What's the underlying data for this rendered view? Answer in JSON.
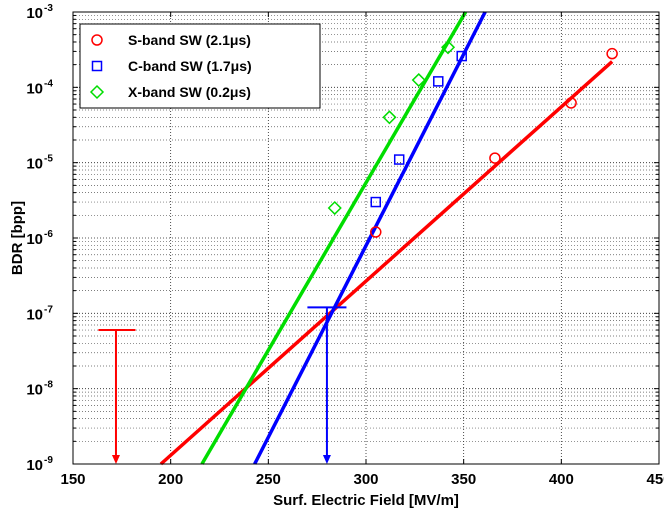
{
  "chart_data": {
    "type": "scatter",
    "xlabel": "Surf. Electric Field [MV/m]",
    "ylabel": "BDR [bpp]",
    "xlim": [
      150,
      450
    ],
    "ylim": [
      1e-09,
      0.001
    ],
    "yscale": "log",
    "grid": true,
    "legend_position": "top-left",
    "x_ticks": [
      "150",
      "200",
      "250",
      "300",
      "350",
      "400",
      "450"
    ],
    "y_tick_exponents": [
      "-9",
      "-8",
      "-7",
      "-6",
      "-5",
      "-4",
      "-3"
    ],
    "series": [
      {
        "name": "S-band SW (2.1μs)",
        "color": "#ff0000",
        "marker": "circle",
        "points": [
          [
            305,
            1.2e-06
          ],
          [
            366,
            1.15e-05
          ],
          [
            405,
            6.2e-05
          ],
          [
            426,
            0.00028
          ]
        ],
        "fit_line": [
          [
            195,
            1e-09
          ],
          [
            426,
            0.00022
          ]
        ]
      },
      {
        "name": "C-band SW (1.7μs)",
        "color": "#0000ff",
        "marker": "square",
        "points": [
          [
            305,
            3e-06
          ],
          [
            317,
            1.1e-05
          ],
          [
            337,
            0.00012
          ],
          [
            349,
            0.00026
          ]
        ],
        "fit_line": [
          [
            243,
            1e-09
          ],
          [
            361,
            0.001
          ]
        ]
      },
      {
        "name": "X-band SW (0.2μs)",
        "color": "#00dd00",
        "marker": "diamond",
        "points": [
          [
            284,
            2.5e-06
          ],
          [
            312,
            4e-05
          ],
          [
            327,
            0.000125
          ],
          [
            342,
            0.00034
          ]
        ],
        "fit_line": [
          [
            216,
            1e-09
          ],
          [
            351,
            0.001
          ]
        ]
      }
    ],
    "annotations": [
      {
        "type": "arrow",
        "color": "#ff0000",
        "x": 172,
        "y_from": 6e-08,
        "y_to": 1e-09,
        "cap_x_range": [
          163,
          182
        ]
      },
      {
        "type": "arrow",
        "color": "#0000ff",
        "x": 280,
        "y_from": 1.2e-07,
        "y_to": 1e-09,
        "cap_x_range": [
          270,
          290
        ]
      }
    ]
  }
}
